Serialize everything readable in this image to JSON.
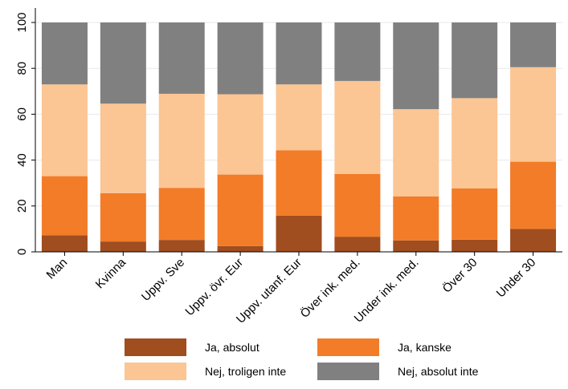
{
  "chart_data": {
    "type": "bar",
    "stacked": true,
    "categories": [
      "Man",
      "Kvinna",
      "Uppv. Sve",
      "Uppv. övr. Eur",
      "Uppv. utanf. Eur",
      "Över ink. med.",
      "Under ink. med.",
      "Över 30",
      "Under 30"
    ],
    "series": [
      {
        "name": "Ja, absolut",
        "color": "#a04d20",
        "values": [
          7.2,
          4.5,
          5.2,
          2.5,
          15.8,
          6.6,
          5.0,
          5.3,
          10.0
        ]
      },
      {
        "name": "Ja, kanske",
        "color": "#f27c28",
        "values": [
          25.8,
          21.1,
          22.7,
          31.2,
          28.5,
          27.4,
          19.2,
          22.4,
          29.3
        ]
      },
      {
        "name": "Nej, troligen inte",
        "color": "#fbc594",
        "values": [
          40.0,
          39.0,
          41.0,
          35.0,
          28.7,
          40.5,
          38.0,
          39.3,
          41.2
        ]
      },
      {
        "name": "Nej, absolut inte",
        "color": "#808080",
        "values": [
          27.0,
          35.4,
          31.1,
          31.3,
          27.0,
          25.5,
          37.8,
          33.0,
          19.5
        ]
      }
    ],
    "yticks": [
      "0",
      "20",
      "40",
      "60",
      "80",
      "100"
    ],
    "ylim": [
      0,
      100
    ],
    "grid": true,
    "legend": "bottom",
    "title": "",
    "xlabel": "",
    "ylabel": ""
  }
}
